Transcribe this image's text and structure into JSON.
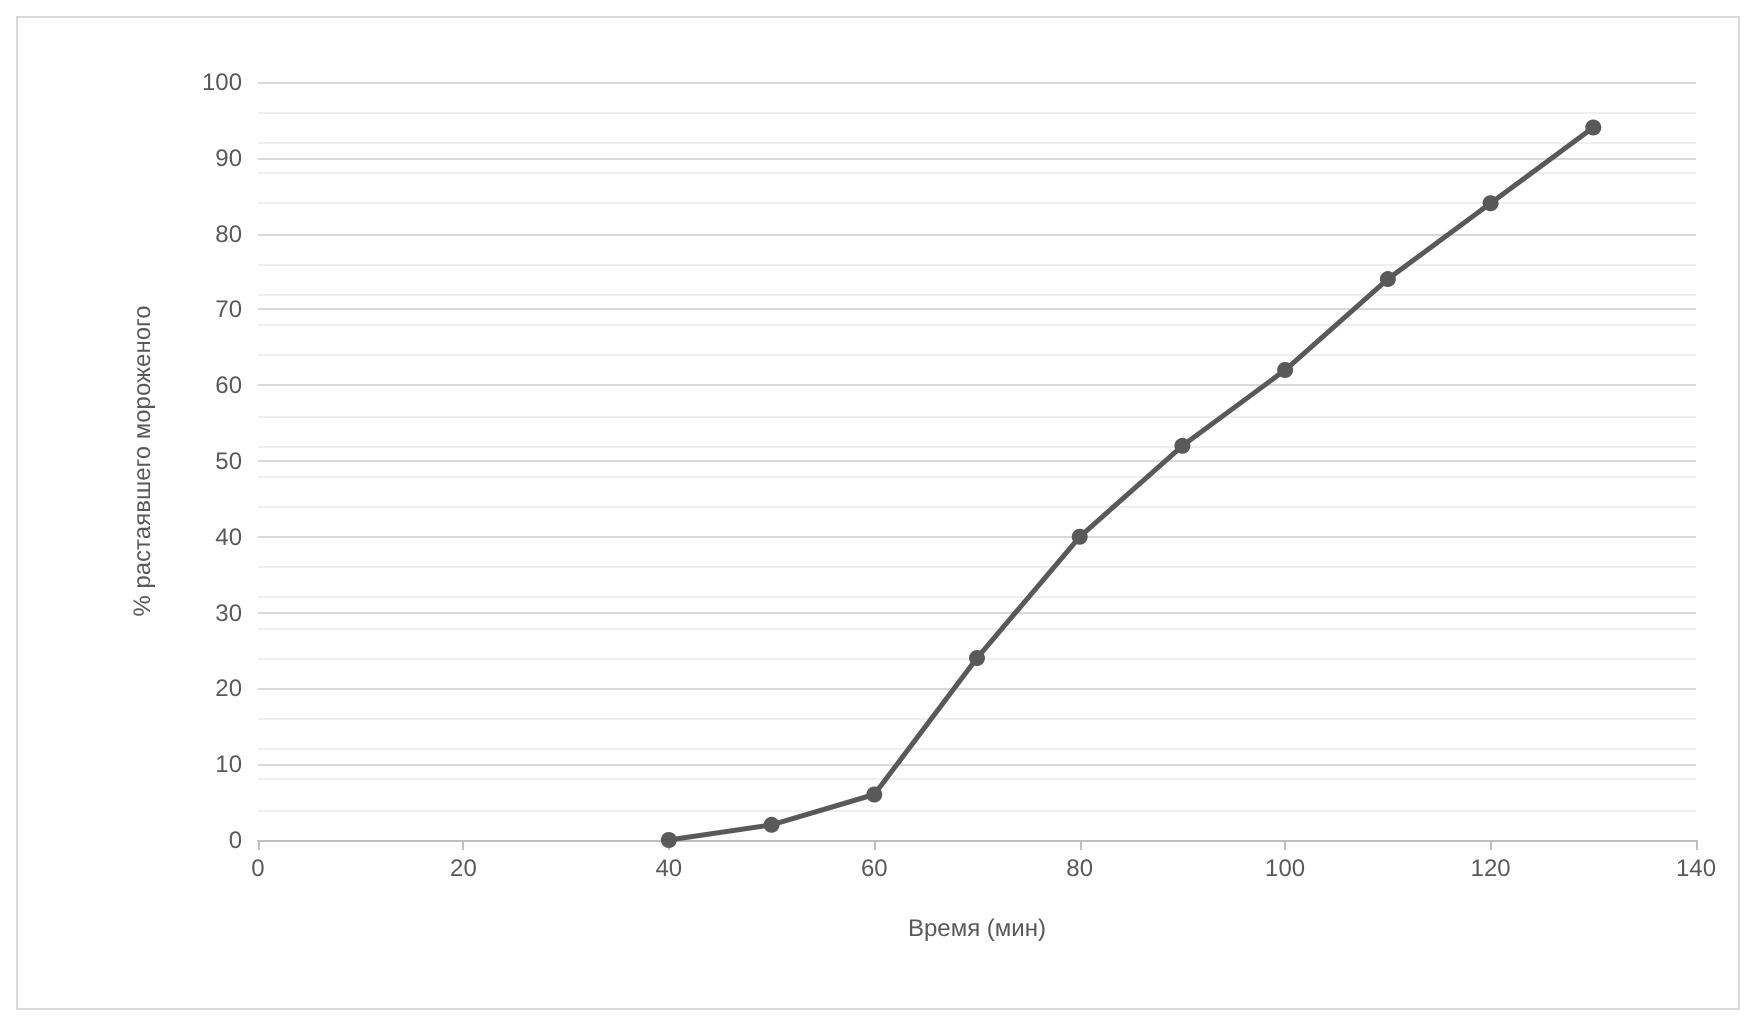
{
  "chart_data": {
    "type": "line",
    "xlabel": "Время (мин)",
    "ylabel": "% растаявшего мороженого",
    "x": [
      40,
      50,
      60,
      70,
      80,
      90,
      100,
      110,
      120,
      130
    ],
    "series": [
      {
        "color": "#595959",
        "values": [
          0,
          2,
          6,
          24,
          40,
          52,
          62,
          74,
          84,
          94
        ]
      }
    ],
    "xlim": [
      0,
      140
    ],
    "xticks": [
      0,
      20,
      40,
      60,
      80,
      100,
      120,
      140
    ],
    "ylim": [
      0,
      100
    ],
    "yticks": [
      0,
      10,
      20,
      30,
      40,
      50,
      60,
      70,
      80,
      90,
      100
    ],
    "grid": "y",
    "marker": "circle",
    "line_style": "solid"
  }
}
